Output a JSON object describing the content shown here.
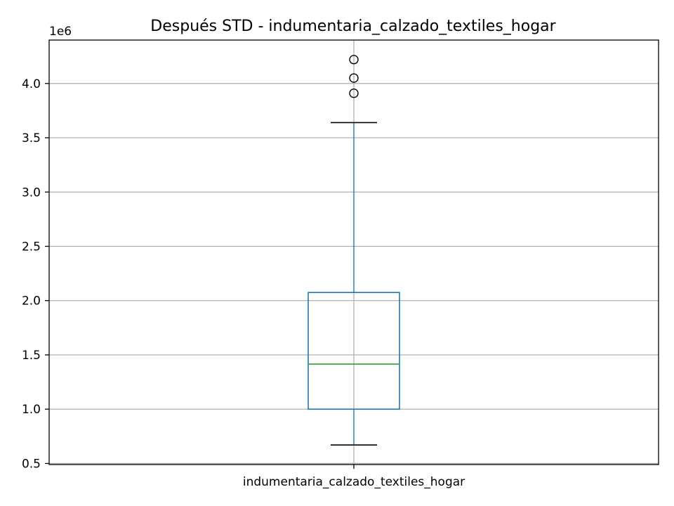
{
  "chart_data": {
    "type": "box",
    "title": "Después STD - indumentaria_calzado_textiles_hogar",
    "xlabel": "",
    "ylabel": "",
    "y_scale_label": "1e6",
    "ylim": [
      490000,
      4400000
    ],
    "yticks": [
      500000,
      1000000,
      1500000,
      2000000,
      2500000,
      3000000,
      3500000,
      4000000
    ],
    "ytick_labels": [
      "0.5",
      "1.0",
      "1.5",
      "2.0",
      "2.5",
      "3.0",
      "3.5",
      "4.0"
    ],
    "grid": true,
    "categories": [
      "indumentaria_calzado_textiles_hogar"
    ],
    "boxes": [
      {
        "category": "indumentaria_calzado_textiles_hogar",
        "whisker_low": 670000,
        "q1": 1000000,
        "median": 1415000,
        "q3": 2075000,
        "whisker_high": 3640000,
        "outliers": [
          3910000,
          4050000,
          4220000
        ]
      }
    ],
    "colors": {
      "box": "#1f77b4",
      "median": "#2ca02c",
      "whisker": "#1f77b4",
      "cap": "#000000",
      "outlier": "#000000",
      "grid": "#b0b0b0"
    }
  }
}
